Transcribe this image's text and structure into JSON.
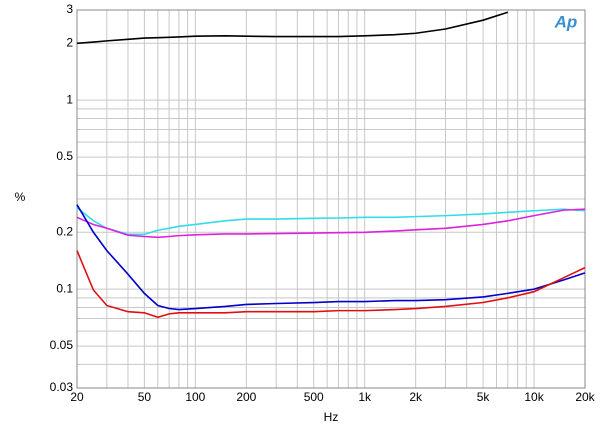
{
  "chart_data": {
    "type": "line",
    "logo": "Ap",
    "xlabel": "Hz",
    "ylabel": "%",
    "xscale": "log",
    "yscale": "log",
    "grid": true,
    "xlim": [
      20,
      20000
    ],
    "ylim": [
      0.03,
      3
    ],
    "xticks": [
      20,
      50,
      100,
      200,
      500,
      {
        "value": 1000,
        "label": "1k"
      },
      {
        "value": 2000,
        "label": "2k"
      },
      {
        "value": 5000,
        "label": "5k"
      },
      {
        "value": 10000,
        "label": "10k"
      },
      {
        "value": 20000,
        "label": "20k"
      }
    ],
    "yticks": [
      0.03,
      0.05,
      0.1,
      0.2,
      0.5,
      1,
      2,
      3
    ],
    "x_minor_grid": [
      30,
      40,
      60,
      70,
      80,
      90,
      300,
      400,
      600,
      700,
      800,
      900,
      3000,
      4000,
      6000,
      7000,
      8000,
      9000
    ],
    "y_minor_grid": [
      0.04,
      0.06,
      0.07,
      0.08,
      0.09,
      0.3,
      0.4,
      0.6,
      0.7,
      0.8,
      0.9
    ],
    "x": [
      20,
      25,
      30,
      40,
      50,
      60,
      70,
      80,
      100,
      150,
      200,
      300,
      500,
      700,
      1000,
      1500,
      2000,
      3000,
      5000,
      7000,
      10000,
      15000,
      20000
    ],
    "series": [
      {
        "color": "#000000",
        "values": [
          2.0,
          2.03,
          2.06,
          2.1,
          2.13,
          2.14,
          2.15,
          2.16,
          2.18,
          2.19,
          2.18,
          2.17,
          2.17,
          2.17,
          2.19,
          2.22,
          2.26,
          2.38,
          2.65,
          2.92,
          null,
          null,
          null
        ]
      },
      {
        "color": "#33dde8",
        "values": [
          0.27,
          0.23,
          0.21,
          0.195,
          0.195,
          0.205,
          0.21,
          0.215,
          0.22,
          0.23,
          0.235,
          0.235,
          0.237,
          0.238,
          0.24,
          0.24,
          0.242,
          0.245,
          0.25,
          0.255,
          0.26,
          0.265,
          0.26
        ]
      },
      {
        "color": "#dd22dd",
        "values": [
          0.24,
          0.22,
          0.21,
          0.193,
          0.19,
          0.188,
          0.19,
          0.192,
          0.194,
          0.196,
          0.196,
          0.197,
          0.198,
          0.199,
          0.2,
          0.203,
          0.206,
          0.21,
          0.22,
          0.23,
          0.245,
          0.262,
          0.265
        ]
      },
      {
        "color": "#0000cc",
        "values": [
          0.28,
          0.2,
          0.16,
          0.12,
          0.095,
          0.082,
          0.079,
          0.078,
          0.079,
          0.081,
          0.083,
          0.084,
          0.085,
          0.086,
          0.086,
          0.087,
          0.087,
          0.088,
          0.091,
          0.095,
          0.1,
          0.112,
          0.122
        ]
      },
      {
        "color": "#e01010",
        "values": [
          0.16,
          0.099,
          0.082,
          0.076,
          0.075,
          0.071,
          0.074,
          0.075,
          0.075,
          0.075,
          0.076,
          0.076,
          0.076,
          0.077,
          0.077,
          0.078,
          0.079,
          0.081,
          0.085,
          0.09,
          0.097,
          0.115,
          0.13
        ]
      }
    ]
  }
}
